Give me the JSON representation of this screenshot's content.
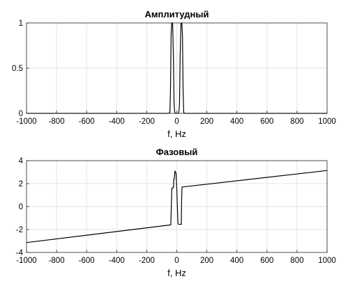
{
  "chart_data": [
    {
      "type": "line",
      "title": "Амплитудный",
      "xlabel": "f, Hz",
      "ylabel": "",
      "xlim": [
        -1000,
        1000
      ],
      "ylim": [
        0,
        1
      ],
      "xticks": [
        -1000,
        -800,
        -600,
        -400,
        -200,
        0,
        200,
        400,
        600,
        800,
        1000
      ],
      "yticks": [
        0,
        0.5,
        1
      ],
      "grid": true,
      "line_color": "#000000",
      "series": [
        {
          "x": [
            -1000,
            -55,
            -46,
            -42,
            -38,
            -34,
            -28,
            -22,
            -18,
            -14,
            -10,
            10,
            14,
            18,
            22,
            28,
            34,
            38,
            42,
            46,
            55,
            1000
          ],
          "values": [
            0,
            0,
            0.01,
            0.25,
            0.85,
            1.0,
            1.0,
            0.6,
            0.1,
            0.02,
            0,
            0,
            0.02,
            0.1,
            0.6,
            1.0,
            1.0,
            0.85,
            0.25,
            0.01,
            0,
            0
          ]
        }
      ]
    },
    {
      "type": "line",
      "title": "Фазовый",
      "xlabel": "f, Hz",
      "ylabel": "",
      "xlim": [
        -1000,
        1000
      ],
      "ylim": [
        -4,
        4
      ],
      "xticks": [
        -1000,
        -800,
        -600,
        -400,
        -200,
        0,
        200,
        400,
        600,
        800,
        1000
      ],
      "yticks": [
        -4,
        -2,
        0,
        2,
        4
      ],
      "grid": true,
      "line_color": "#000000",
      "series": [
        {
          "x": [
            -1000,
            -40,
            -36,
            -33,
            -31,
            -28,
            -26,
            -22,
            -20,
            -17,
            -12,
            -5,
            0,
            5,
            8,
            12,
            15,
            30,
            32,
            35,
            1000
          ],
          "values": [
            -3.14,
            -1.6,
            0.2,
            1.6,
            1.6,
            1.6,
            1.65,
            1.65,
            2.4,
            2.4,
            3.1,
            2.9,
            1.5,
            -0.5,
            -1.5,
            -1.55,
            -1.55,
            -1.55,
            0.5,
            1.7,
            3.14
          ]
        }
      ]
    }
  ]
}
